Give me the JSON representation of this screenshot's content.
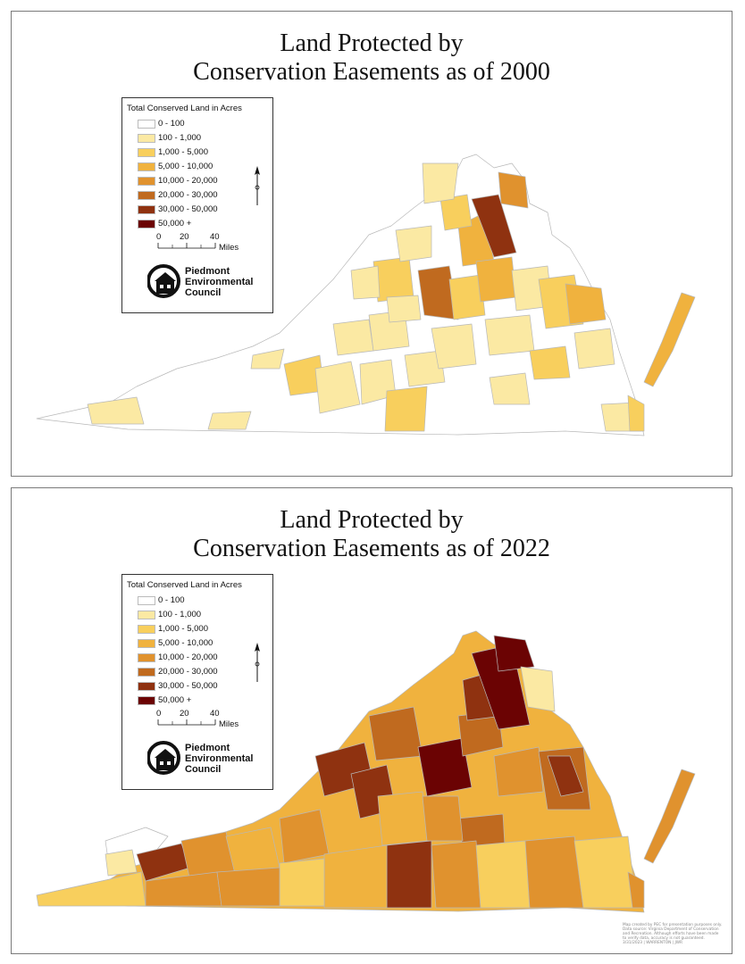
{
  "maps": [
    {
      "title_line1": "Land Protected by",
      "title_line2": "Conservation Easements as of 2000",
      "year": 2000
    },
    {
      "title_line1": "Land Protected by",
      "title_line2": "Conservation Easements as of 2022",
      "year": 2022
    }
  ],
  "legend": {
    "title": "Total Conserved Land in Acres",
    "classes": [
      {
        "label": "0 - 100",
        "color": "#ffffff"
      },
      {
        "label": "100 - 1,000",
        "color": "#fbe9a3"
      },
      {
        "label": "1,000 - 5,000",
        "color": "#f8cf5d"
      },
      {
        "label": "5,000 - 10,000",
        "color": "#f0b23e"
      },
      {
        "label": "10,000 - 20,000",
        "color": "#e0922e"
      },
      {
        "label": "20,000 - 30,000",
        "color": "#c06a1f"
      },
      {
        "label": "30,000 - 50,000",
        "color": "#8f3210"
      },
      {
        "label": "50,000 +",
        "color": "#6b0303"
      }
    ],
    "scale": {
      "ticks": [
        "0",
        "20",
        "40"
      ],
      "unit": "Miles"
    },
    "logo": {
      "line1": "Piedmont",
      "line2": "Environmental",
      "line3": "Council"
    },
    "north_arrow_icon": "north-arrow-icon"
  },
  "credits": {
    "line1": "Map created by PEC for presentation purposes only.",
    "line2": "Data source: Virginia Department of Conservation",
    "line3": "and Recreation. Although efforts have been made",
    "line4": "to verify data, accuracy is not guaranteed.",
    "line5": "3/31/2023   |   WARRENTON   |   JWR"
  }
}
